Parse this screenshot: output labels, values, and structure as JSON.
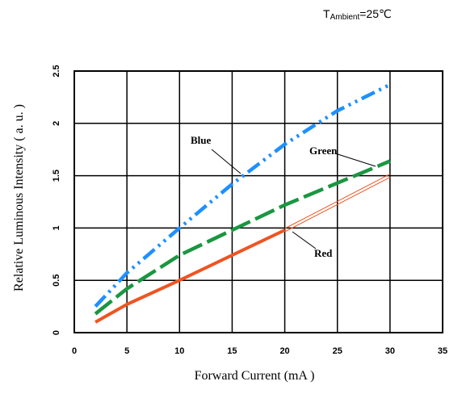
{
  "chart_data": {
    "type": "line",
    "annotation_top": {
      "main": "T",
      "sub": "Ambient",
      "rest": "=25℃"
    },
    "xlabel": "Forward  Current  (mA )",
    "ylabel": "Relative Luminous Intensity  ( a. u. )",
    "xlim": [
      0,
      35
    ],
    "ylim": [
      0,
      2.5
    ],
    "xticks": [
      0,
      5,
      10,
      15,
      20,
      25,
      30,
      35
    ],
    "xtick_labels": [
      "0",
      "5",
      "10",
      "15",
      "20",
      "25",
      "30",
      "35"
    ],
    "yticks": [
      0,
      0.5,
      1,
      1.5,
      2,
      2.5
    ],
    "ytick_labels": [
      "0",
      "0.5",
      "1",
      "1.5",
      "2",
      "2.5"
    ],
    "grid": true,
    "series": [
      {
        "name": "Blue",
        "color": "#1e90ff",
        "style": "dash-dot-dot",
        "x": [
          2,
          5,
          10,
          15,
          20,
          25,
          30
        ],
        "y": [
          0.25,
          0.57,
          1.0,
          1.42,
          1.8,
          2.12,
          2.37
        ]
      },
      {
        "name": "Green",
        "color": "#1a9641",
        "style": "dashed",
        "x": [
          2,
          5,
          10,
          15,
          20,
          25,
          30
        ],
        "y": [
          0.18,
          0.42,
          0.74,
          0.98,
          1.22,
          1.43,
          1.64
        ]
      },
      {
        "name": "Red",
        "color": "#ee5522",
        "style": "solid",
        "x": [
          2,
          5,
          10,
          15,
          20
        ],
        "y": [
          0.1,
          0.27,
          0.5,
          0.74,
          0.98
        ]
      },
      {
        "name": "",
        "color": "#ee5522",
        "style": "double-thin",
        "x": [
          20,
          30
        ],
        "y": [
          0.98,
          1.5
        ]
      }
    ],
    "series_labels": [
      "Blue",
      "Green",
      "Red"
    ]
  }
}
